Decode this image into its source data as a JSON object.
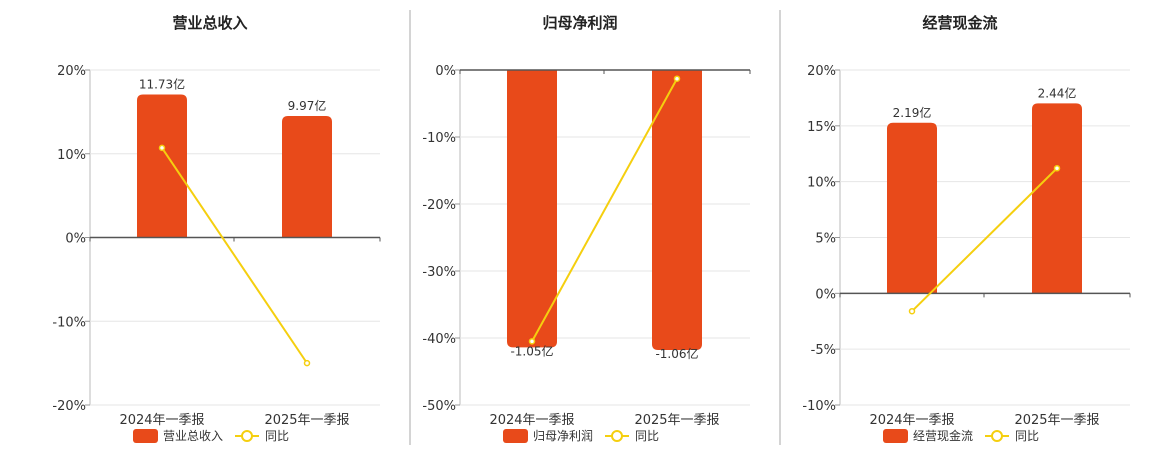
{
  "chart_data": [
    {
      "type": "bar+line",
      "title": "营业总收入",
      "categories": [
        "2024年一季报",
        "2025年一季报"
      ],
      "bar_labels": [
        "11.73亿",
        "9.97亿"
      ],
      "bar_values": [
        11.73,
        9.97
      ],
      "yoy": [
        10.7,
        -15.0
      ],
      "ylim": [
        -20,
        20
      ],
      "yticks": [
        "20%",
        "10%",
        "0%",
        "-10%",
        "-20%"
      ],
      "ytick_values": [
        20,
        10,
        0,
        -10,
        -20
      ],
      "legend": [
        "营业总收入",
        "同比"
      ]
    },
    {
      "type": "bar+line",
      "title": "归母净利润",
      "categories": [
        "2024年一季报",
        "2025年一季报"
      ],
      "bar_labels": [
        "-1.05亿",
        "-1.06亿"
      ],
      "bar_values": [
        -1.05,
        -1.06
      ],
      "yoy": [
        -40.5,
        -1.3
      ],
      "ylim": [
        -50,
        0
      ],
      "yticks": [
        "0%",
        "-10%",
        "-20%",
        "-30%",
        "-40%",
        "-50%"
      ],
      "ytick_values": [
        0,
        -10,
        -20,
        -30,
        -40,
        -50
      ],
      "legend": [
        "归母净利润",
        "同比"
      ]
    },
    {
      "type": "bar+line",
      "title": "经营现金流",
      "categories": [
        "2024年一季报",
        "2025年一季报"
      ],
      "bar_labels": [
        "2.19亿",
        "2.44亿"
      ],
      "bar_values": [
        2.19,
        2.44
      ],
      "yoy": [
        -1.6,
        11.2
      ],
      "ylim": [
        -10,
        20
      ],
      "yticks": [
        "20%",
        "15%",
        "10%",
        "5%",
        "0%",
        "-5%",
        "-10%"
      ],
      "ytick_values": [
        20,
        15,
        10,
        5,
        0,
        -5,
        -10
      ],
      "legend": [
        "经营现金流",
        "同比"
      ]
    }
  ],
  "colors": {
    "bar": "#e84a1a",
    "line": "#f5cf0f",
    "axis": "#555555",
    "grid": "#e6e6e6",
    "separator": "#aaaaaa"
  }
}
